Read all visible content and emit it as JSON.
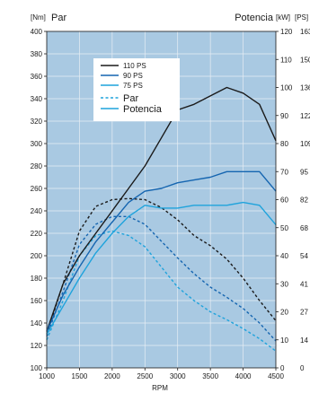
{
  "chart_data": {
    "type": "line",
    "xlabel": "RPM",
    "x_ticks": [
      "1000",
      "1500",
      "2000",
      "2500",
      "3000",
      "3500",
      "4000",
      "4500"
    ],
    "xlim": [
      1000,
      4500
    ],
    "left_axis": {
      "unit": "[Nm]",
      "title": "Par",
      "ylim": [
        100,
        400
      ],
      "ticks": [
        "100",
        "120",
        "140",
        "160",
        "180",
        "200",
        "220",
        "240",
        "260",
        "280",
        "300",
        "320",
        "340",
        "360",
        "380",
        "400"
      ]
    },
    "right_axis": {
      "unit": "[kW]",
      "unit2": "[PS]",
      "title": "Potencia",
      "ylim": [
        0,
        120
      ],
      "ticks": [
        "0",
        "10",
        "20",
        "30",
        "40",
        "50",
        "60",
        "70",
        "80",
        "90",
        "100",
        "110",
        "120"
      ],
      "ticks2": [
        "0",
        "14",
        "27",
        "41",
        "54",
        "68",
        "82",
        "95",
        "109",
        "122",
        "136",
        "150",
        "163"
      ]
    },
    "legend": {
      "position": "top-left",
      "items": [
        {
          "label": "110 PS",
          "color": "#1a1a1a",
          "style": "solid"
        },
        {
          "label": "90 PS",
          "color": "#1565b0",
          "style": "solid"
        },
        {
          "label": "75 PS",
          "color": "#1fa3dc",
          "style": "solid"
        }
      ],
      "style_items": [
        {
          "label": "Par",
          "style": "dashed"
        },
        {
          "label": "Potencia",
          "style": "solid"
        }
      ]
    },
    "series": [
      {
        "name": "110 PS",
        "measure": "Par",
        "axis": "left",
        "color": "#1a1a1a",
        "dash": true,
        "x": [
          1000,
          1250,
          1500,
          1750,
          2000,
          2250,
          2500,
          2750,
          3000,
          3250,
          3500,
          3750,
          4000,
          4250,
          4500
        ],
        "y": [
          130,
          175,
          222,
          244,
          250,
          251,
          250,
          243,
          232,
          218,
          209,
          197,
          180,
          160,
          142
        ]
      },
      {
        "name": "90 PS",
        "measure": "Par",
        "axis": "left",
        "color": "#1565b0",
        "dash": true,
        "x": [
          1000,
          1250,
          1500,
          1750,
          2000,
          2250,
          2500,
          2750,
          3000,
          3250,
          3500,
          3750,
          4000,
          4250,
          4500
        ],
        "y": [
          128,
          168,
          210,
          228,
          235,
          235,
          228,
          213,
          198,
          184,
          172,
          163,
          153,
          140,
          124
        ]
      },
      {
        "name": "75 PS",
        "measure": "Par",
        "axis": "left",
        "color": "#1fa3dc",
        "dash": true,
        "x": [
          1000,
          1250,
          1500,
          1750,
          2000,
          2250,
          2500,
          2750,
          3000,
          3250,
          3500,
          3750,
          4000,
          4250,
          4500
        ],
        "y": [
          125,
          160,
          200,
          218,
          222,
          218,
          208,
          190,
          172,
          160,
          150,
          143,
          135,
          126,
          115
        ]
      },
      {
        "name": "110 PS",
        "measure": "Potencia",
        "axis": "right",
        "color": "#1a1a1a",
        "dash": false,
        "x": [
          1000,
          1250,
          1500,
          1750,
          2000,
          2250,
          2500,
          2750,
          3000,
          3250,
          3500,
          3750,
          4000,
          4250,
          4500
        ],
        "y": [
          13,
          30,
          40,
          48,
          56,
          64,
          72,
          82,
          92,
          94,
          97,
          100,
          98,
          94,
          81
        ]
      },
      {
        "name": "90 PS",
        "measure": "Potencia",
        "axis": "right",
        "color": "#1565b0",
        "dash": false,
        "x": [
          1000,
          1250,
          1500,
          1750,
          2000,
          2250,
          2500,
          2750,
          3000,
          3250,
          3500,
          3750,
          4000,
          4250,
          4500
        ],
        "y": [
          13,
          26,
          36,
          45,
          52,
          59,
          63,
          64,
          66,
          67,
          68,
          70,
          70,
          70,
          63
        ]
      },
      {
        "name": "75 PS",
        "measure": "Potencia",
        "axis": "right",
        "color": "#1fa3dc",
        "dash": false,
        "x": [
          1000,
          1250,
          1500,
          1750,
          2000,
          2250,
          2500,
          2750,
          3000,
          3250,
          3500,
          3750,
          4000,
          4250,
          4500
        ],
        "y": [
          12,
          22,
          32,
          41,
          48,
          54,
          58,
          57,
          57,
          58,
          58,
          58,
          59,
          58,
          51
        ]
      }
    ]
  },
  "colors": {
    "plot_background": "#a9c9e2",
    "grid": "#e8eef4"
  }
}
